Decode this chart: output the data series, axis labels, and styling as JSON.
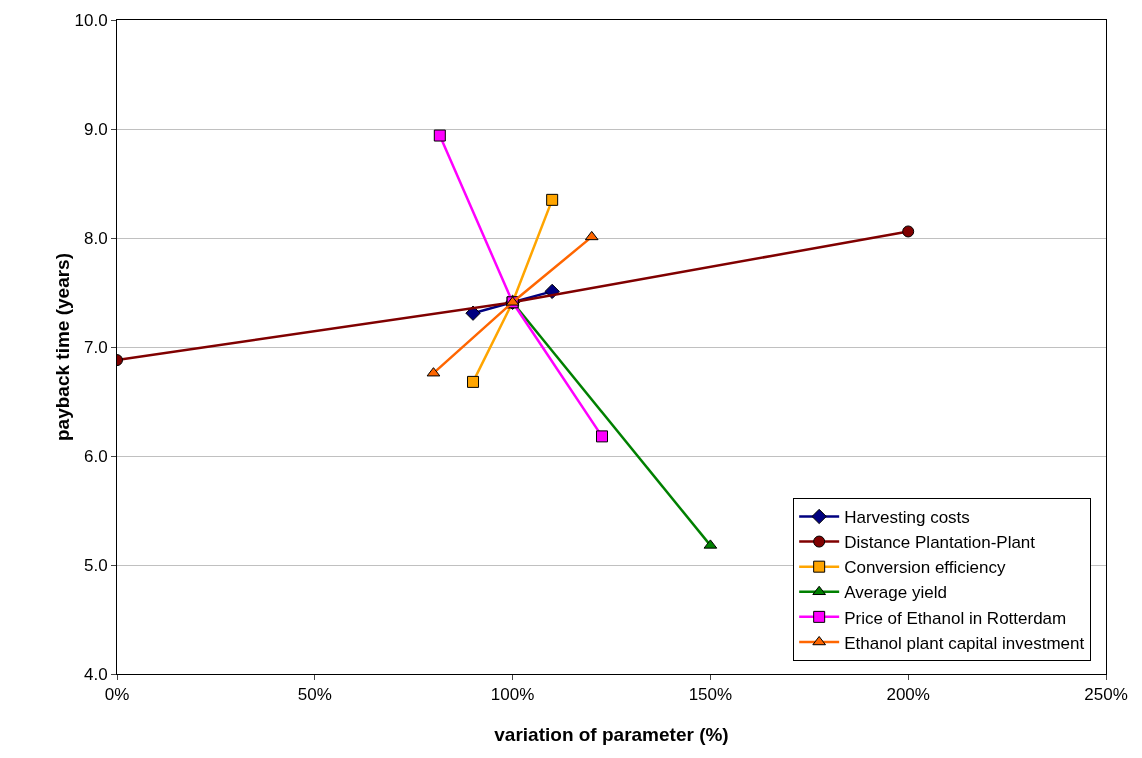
{
  "chart_data": {
    "type": "line",
    "xlabel": "variation of parameter (%)",
    "ylabel": "payback time (years)",
    "xlim": [
      0,
      250
    ],
    "ylim": [
      4,
      10
    ],
    "xticks": [
      {
        "value": 0,
        "label": "0%"
      },
      {
        "value": 50,
        "label": "50%"
      },
      {
        "value": 100,
        "label": "100%"
      },
      {
        "value": 150,
        "label": "150%"
      },
      {
        "value": 200,
        "label": "200%"
      },
      {
        "value": 250,
        "label": "250%"
      }
    ],
    "yticks": [
      {
        "value": 4,
        "label": "4.0"
      },
      {
        "value": 5,
        "label": "5.0"
      },
      {
        "value": 6,
        "label": "6.0"
      },
      {
        "value": 7,
        "label": "7.0"
      },
      {
        "value": 8,
        "label": "8.0"
      },
      {
        "value": 9,
        "label": "9.0"
      },
      {
        "value": 10,
        "label": "10.0"
      }
    ],
    "grid": "y",
    "legend": "bottom right",
    "line_style": "solid",
    "series": [
      {
        "name": "Harvesting costs",
        "color": "#000080",
        "marker": "diamond",
        "x": [
          90,
          100,
          110
        ],
        "values": [
          7.31,
          7.41,
          7.51
        ]
      },
      {
        "name": "Distance Plantation-Plant",
        "color": "#800000",
        "marker": "circle",
        "x": [
          0,
          100,
          200
        ],
        "values": [
          6.88,
          7.41,
          8.06
        ]
      },
      {
        "name": "Conversion efficiency",
        "color": "#ffa500",
        "marker": "square",
        "x": [
          90,
          100,
          110
        ],
        "values": [
          6.68,
          7.41,
          8.35
        ]
      },
      {
        "name": "Average yield",
        "color": "#008000",
        "marker": "triangle",
        "x": [
          100,
          150
        ],
        "values": [
          7.41,
          5.18
        ]
      },
      {
        "name": "Price of Ethanol in Rotterdam",
        "color": "#ff00ff",
        "marker": "square",
        "x": [
          81.6,
          100,
          122.6
        ],
        "values": [
          8.94,
          7.41,
          6.18
        ]
      },
      {
        "name": "Ethanol plant capital investment",
        "color": "#ff6600",
        "marker": "triangle",
        "x": [
          80,
          100,
          120
        ],
        "values": [
          6.76,
          7.41,
          8.01
        ]
      }
    ]
  }
}
